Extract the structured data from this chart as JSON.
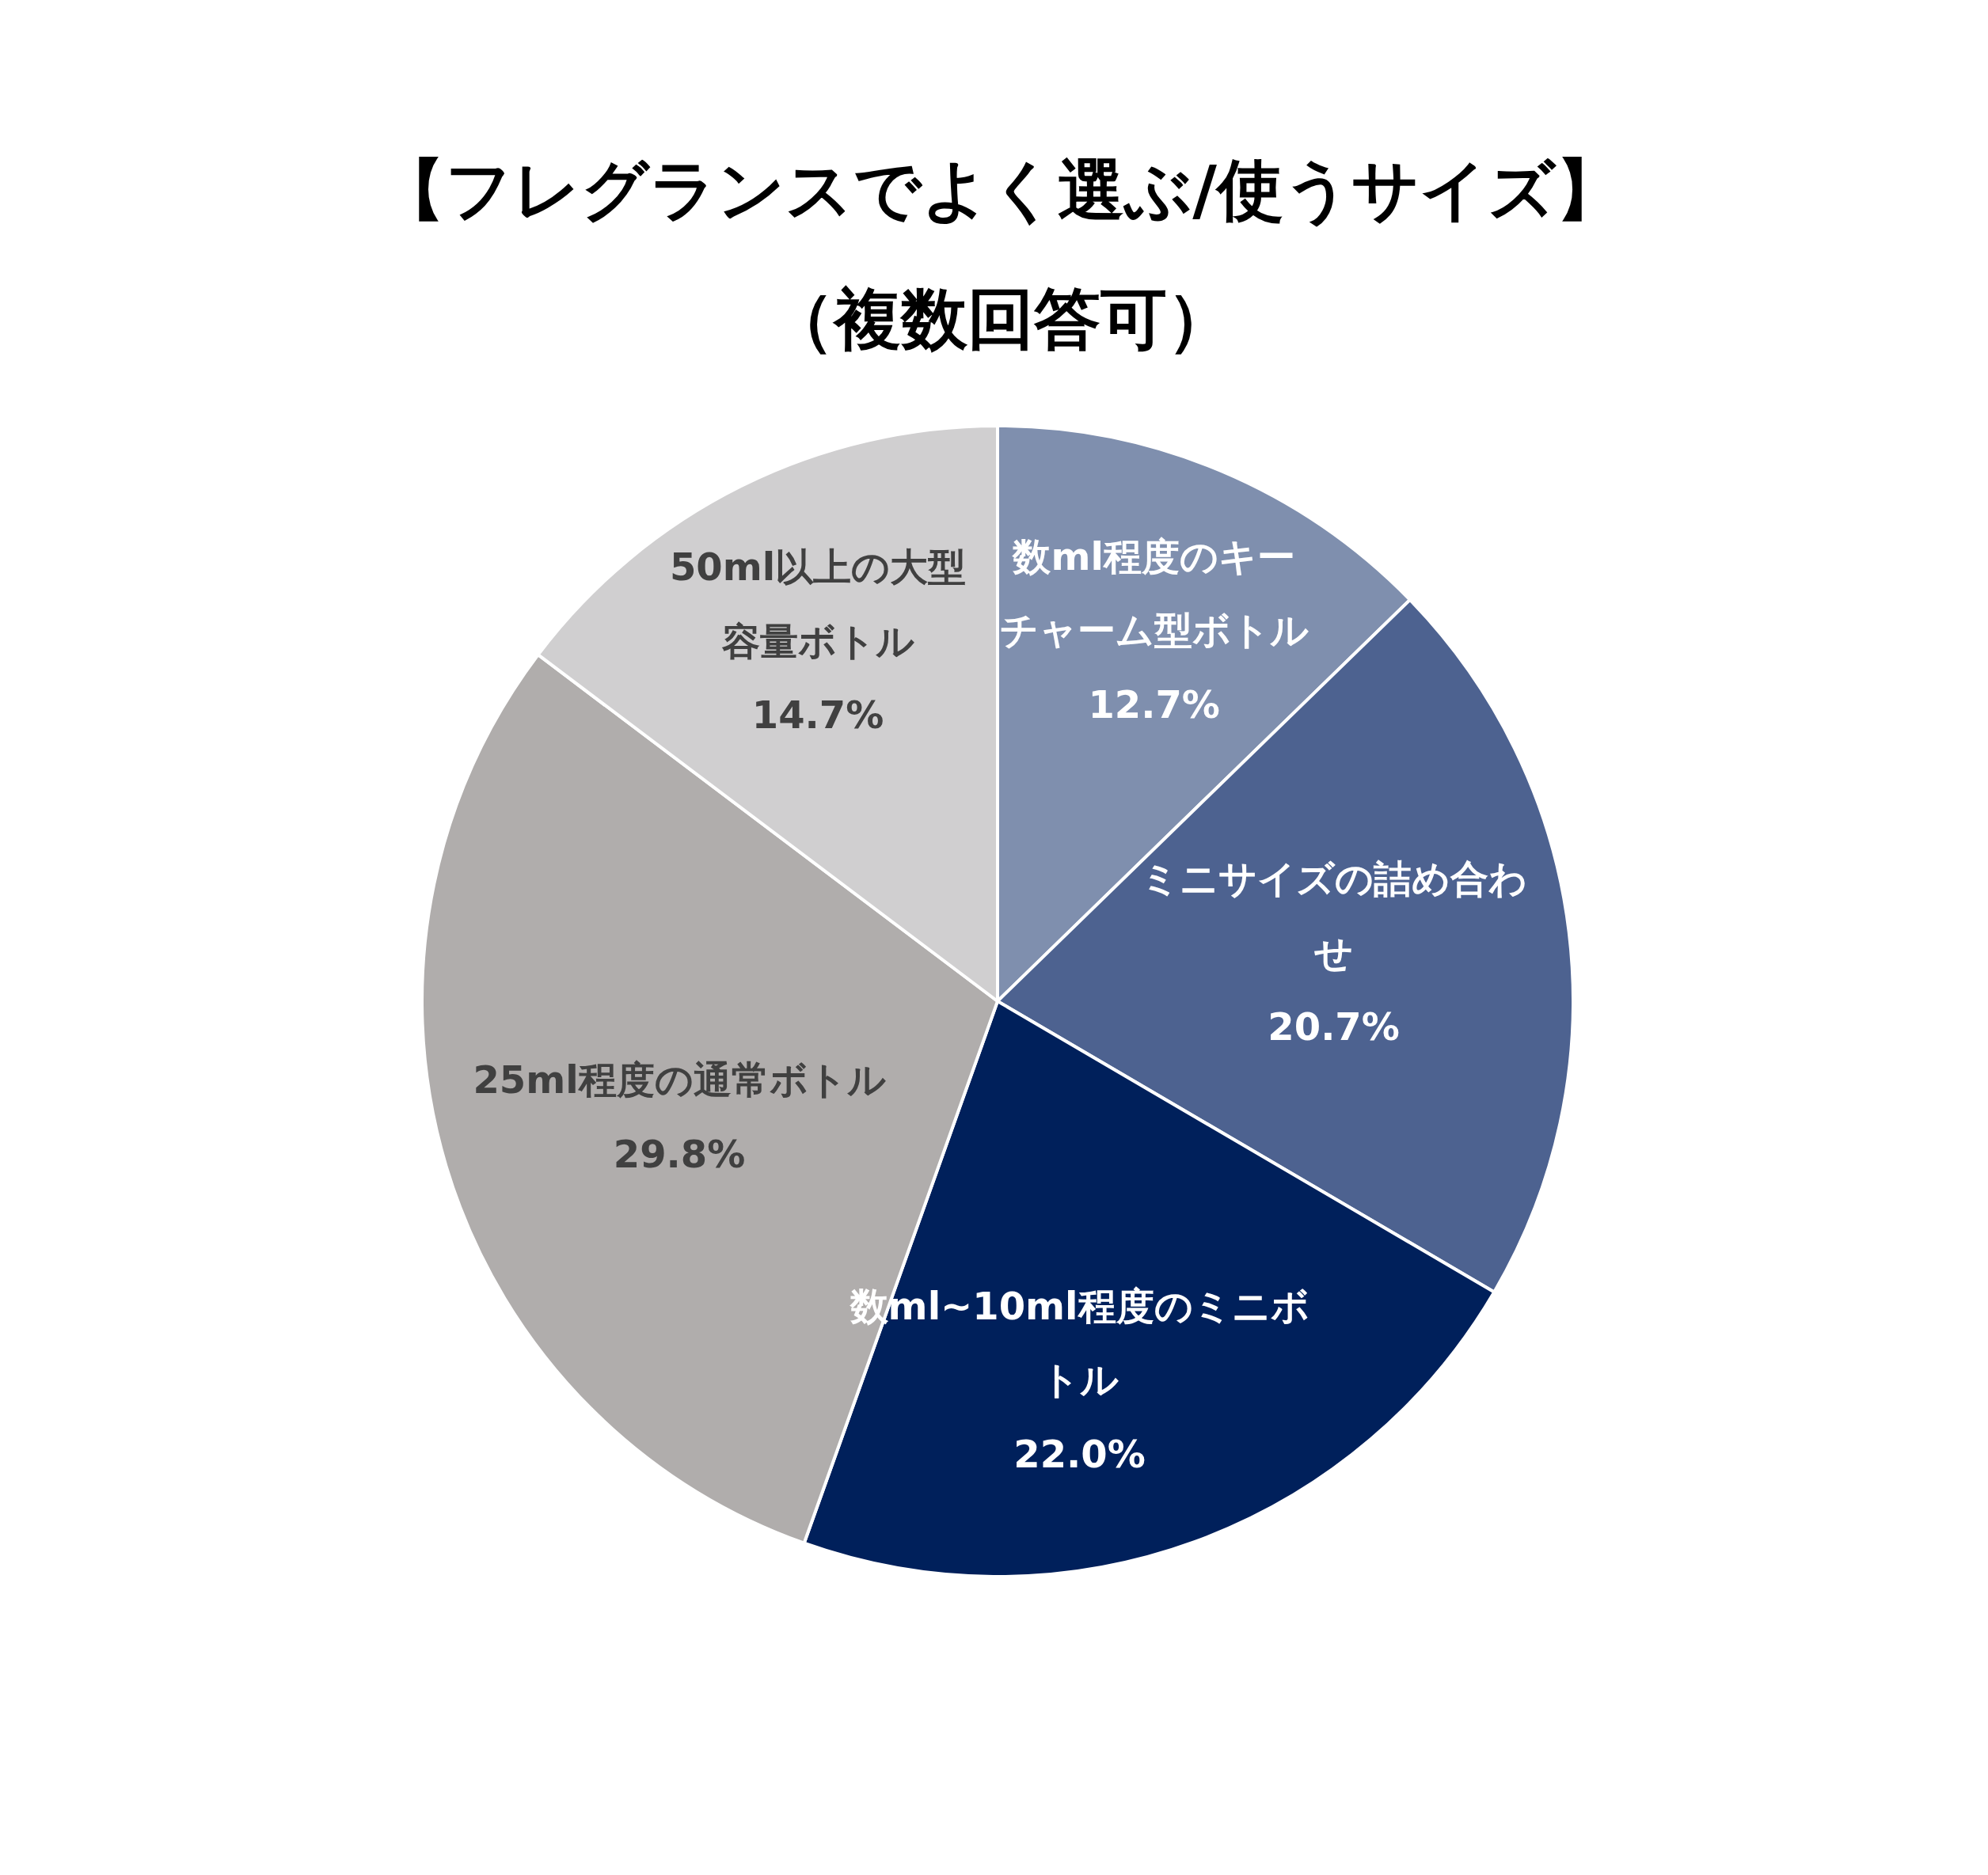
{
  "chart_data": {
    "type": "pie",
    "title": "【フレグランスでよく選ぶ/使うサイズ】",
    "subtitle": "（複数回答可）",
    "categories": [
      "数ml程度のキーチャーム型ボトル",
      "ミニサイズの詰め合わせ",
      "数ml~10ml程度のミニボトル",
      "25ml程度の通常ボトル",
      "50ml以上の大型容量ボトル"
    ],
    "values": [
      12.7,
      20.7,
      22.0,
      29.8,
      14.7
    ],
    "colors": [
      "#7f8fae",
      "#4d6290",
      "#00205b",
      "#b0adac",
      "#d0cfd0"
    ],
    "value_labels": [
      "12.7%",
      "20.7%",
      "22.0%",
      "29.8%",
      "14.7%"
    ]
  }
}
